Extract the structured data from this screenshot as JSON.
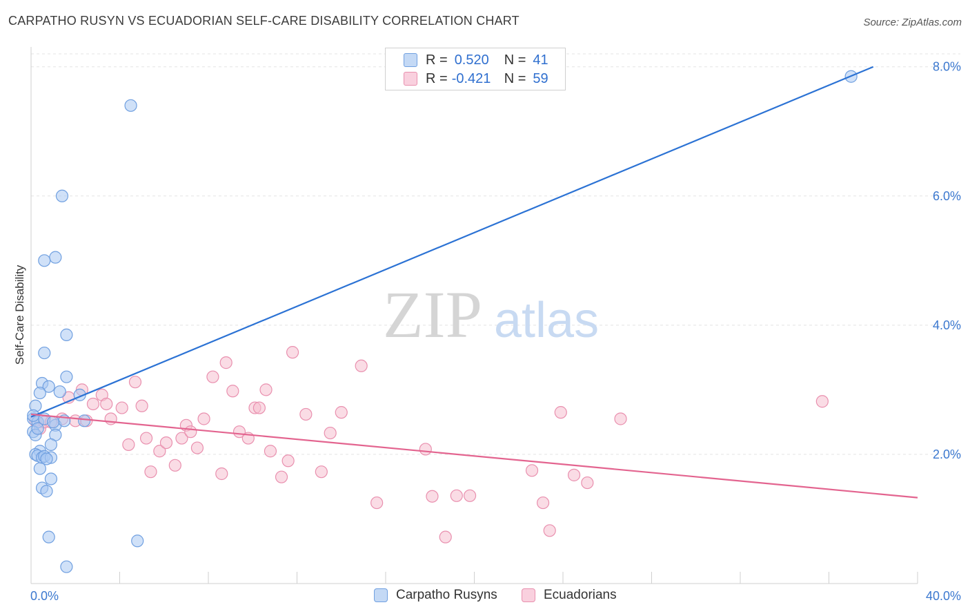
{
  "header": {
    "title": "CARPATHO RUSYN VS ECUADORIAN SELF-CARE DISABILITY CORRELATION CHART",
    "source": "Source: ZipAtlas.com"
  },
  "watermark": {
    "zip": "ZIP",
    "atlas": "atlas"
  },
  "legend": {
    "rows": [
      {
        "r_label": "R =",
        "r_value": "0.520",
        "n_label": "N =",
        "n_value": "41"
      },
      {
        "r_label": "R =",
        "r_value": "-0.421",
        "n_label": "N =",
        "n_value": "59"
      }
    ]
  },
  "colors": {
    "blue_fill": "#a9c8f2",
    "blue_stroke": "#6f9fe0",
    "blue_line": "#2b72d4",
    "pink_fill": "#f6bfd0",
    "pink_stroke": "#e98fae",
    "pink_line": "#e3648f",
    "axis_label": "#3b78cf"
  },
  "chart_data": {
    "type": "scatter",
    "title": "CARPATHO RUSYN VS ECUADORIAN SELF-CARE DISABILITY CORRELATION CHART",
    "xlabel": "",
    "ylabel": "Self-Care Disability",
    "xlim": [
      0,
      40
    ],
    "ylim": [
      0,
      8.2
    ],
    "x_tick_labels": [
      "0.0%",
      "40.0%"
    ],
    "y_ticks": [
      2,
      4,
      6,
      8
    ],
    "y_tick_labels": [
      "2.0%",
      "4.0%",
      "6.0%",
      "8.0%"
    ],
    "grid": "horizontal dashed",
    "legend_placement": "bottom-center",
    "series": [
      {
        "name": "Carpatho Rusyns",
        "color": "#a9c8f2",
        "points": [
          [
            4.5,
            7.4
          ],
          [
            1.4,
            6.0
          ],
          [
            1.1,
            5.05
          ],
          [
            0.6,
            5.0
          ],
          [
            1.6,
            3.85
          ],
          [
            0.6,
            3.57
          ],
          [
            1.6,
            3.2
          ],
          [
            0.5,
            3.1
          ],
          [
            0.8,
            3.05
          ],
          [
            0.4,
            2.95
          ],
          [
            1.3,
            2.97
          ],
          [
            2.2,
            2.92
          ],
          [
            0.2,
            2.75
          ],
          [
            0.1,
            2.55
          ],
          [
            0.3,
            2.5
          ],
          [
            1.1,
            2.45
          ],
          [
            1.5,
            2.52
          ],
          [
            2.4,
            2.52
          ],
          [
            0.1,
            2.35
          ],
          [
            1.1,
            2.3
          ],
          [
            0.2,
            2.3
          ],
          [
            0.9,
            2.15
          ],
          [
            0.4,
            2.05
          ],
          [
            0.2,
            2.0
          ],
          [
            0.3,
            1.98
          ],
          [
            0.5,
            1.95
          ],
          [
            0.6,
            1.97
          ],
          [
            0.9,
            1.95
          ],
          [
            0.7,
            1.93
          ],
          [
            0.4,
            1.78
          ],
          [
            0.9,
            1.62
          ],
          [
            0.5,
            1.48
          ],
          [
            0.7,
            1.43
          ],
          [
            0.8,
            0.72
          ],
          [
            4.8,
            0.66
          ],
          [
            1.6,
            0.26
          ],
          [
            37.0,
            7.85
          ],
          [
            0.1,
            2.6
          ],
          [
            0.3,
            2.4
          ],
          [
            0.6,
            2.55
          ],
          [
            1.0,
            2.5
          ]
        ]
      },
      {
        "name": "Ecuadorians",
        "color": "#f6bfd0",
        "points": [
          [
            0.2,
            2.52
          ],
          [
            0.4,
            2.4
          ],
          [
            0.6,
            2.5
          ],
          [
            0.9,
            2.5
          ],
          [
            1.4,
            2.55
          ],
          [
            1.7,
            2.88
          ],
          [
            2.0,
            2.52
          ],
          [
            2.5,
            2.52
          ],
          [
            2.3,
            3.0
          ],
          [
            2.8,
            2.78
          ],
          [
            3.2,
            2.92
          ],
          [
            3.4,
            2.78
          ],
          [
            3.6,
            2.55
          ],
          [
            4.1,
            2.72
          ],
          [
            4.4,
            2.15
          ],
          [
            4.7,
            3.12
          ],
          [
            5.0,
            2.75
          ],
          [
            5.2,
            2.25
          ],
          [
            5.4,
            1.73
          ],
          [
            5.8,
            2.05
          ],
          [
            6.1,
            2.18
          ],
          [
            6.5,
            1.83
          ],
          [
            6.8,
            2.25
          ],
          [
            7.0,
            2.45
          ],
          [
            7.2,
            2.35
          ],
          [
            7.5,
            2.1
          ],
          [
            7.8,
            2.55
          ],
          [
            8.2,
            3.2
          ],
          [
            8.6,
            1.7
          ],
          [
            8.8,
            3.42
          ],
          [
            9.1,
            2.98
          ],
          [
            9.4,
            2.35
          ],
          [
            9.8,
            2.25
          ],
          [
            10.1,
            2.72
          ],
          [
            10.3,
            2.72
          ],
          [
            10.6,
            3.0
          ],
          [
            10.8,
            2.05
          ],
          [
            11.3,
            1.65
          ],
          [
            11.6,
            1.9
          ],
          [
            11.8,
            3.58
          ],
          [
            12.4,
            2.62
          ],
          [
            13.1,
            1.73
          ],
          [
            13.5,
            2.33
          ],
          [
            14.0,
            2.65
          ],
          [
            14.9,
            3.37
          ],
          [
            15.6,
            1.25
          ],
          [
            17.8,
            2.08
          ],
          [
            18.1,
            1.35
          ],
          [
            18.7,
            0.72
          ],
          [
            19.2,
            1.36
          ],
          [
            19.8,
            1.36
          ],
          [
            22.6,
            1.75
          ],
          [
            23.1,
            1.25
          ],
          [
            23.4,
            0.82
          ],
          [
            23.9,
            2.65
          ],
          [
            24.5,
            1.68
          ],
          [
            25.1,
            1.56
          ],
          [
            26.6,
            2.55
          ],
          [
            35.7,
            2.82
          ]
        ]
      }
    ],
    "trend_lines": [
      {
        "series": "Carpatho Rusyns",
        "from": [
          0,
          2.58
        ],
        "to": [
          38.0,
          8.0
        ]
      },
      {
        "series": "Ecuadorians",
        "from": [
          0,
          2.62
        ],
        "to": [
          40.0,
          1.33
        ]
      }
    ]
  },
  "bottom_legend": {
    "items": [
      "Carpatho Rusyns",
      "Ecuadorians"
    ]
  }
}
